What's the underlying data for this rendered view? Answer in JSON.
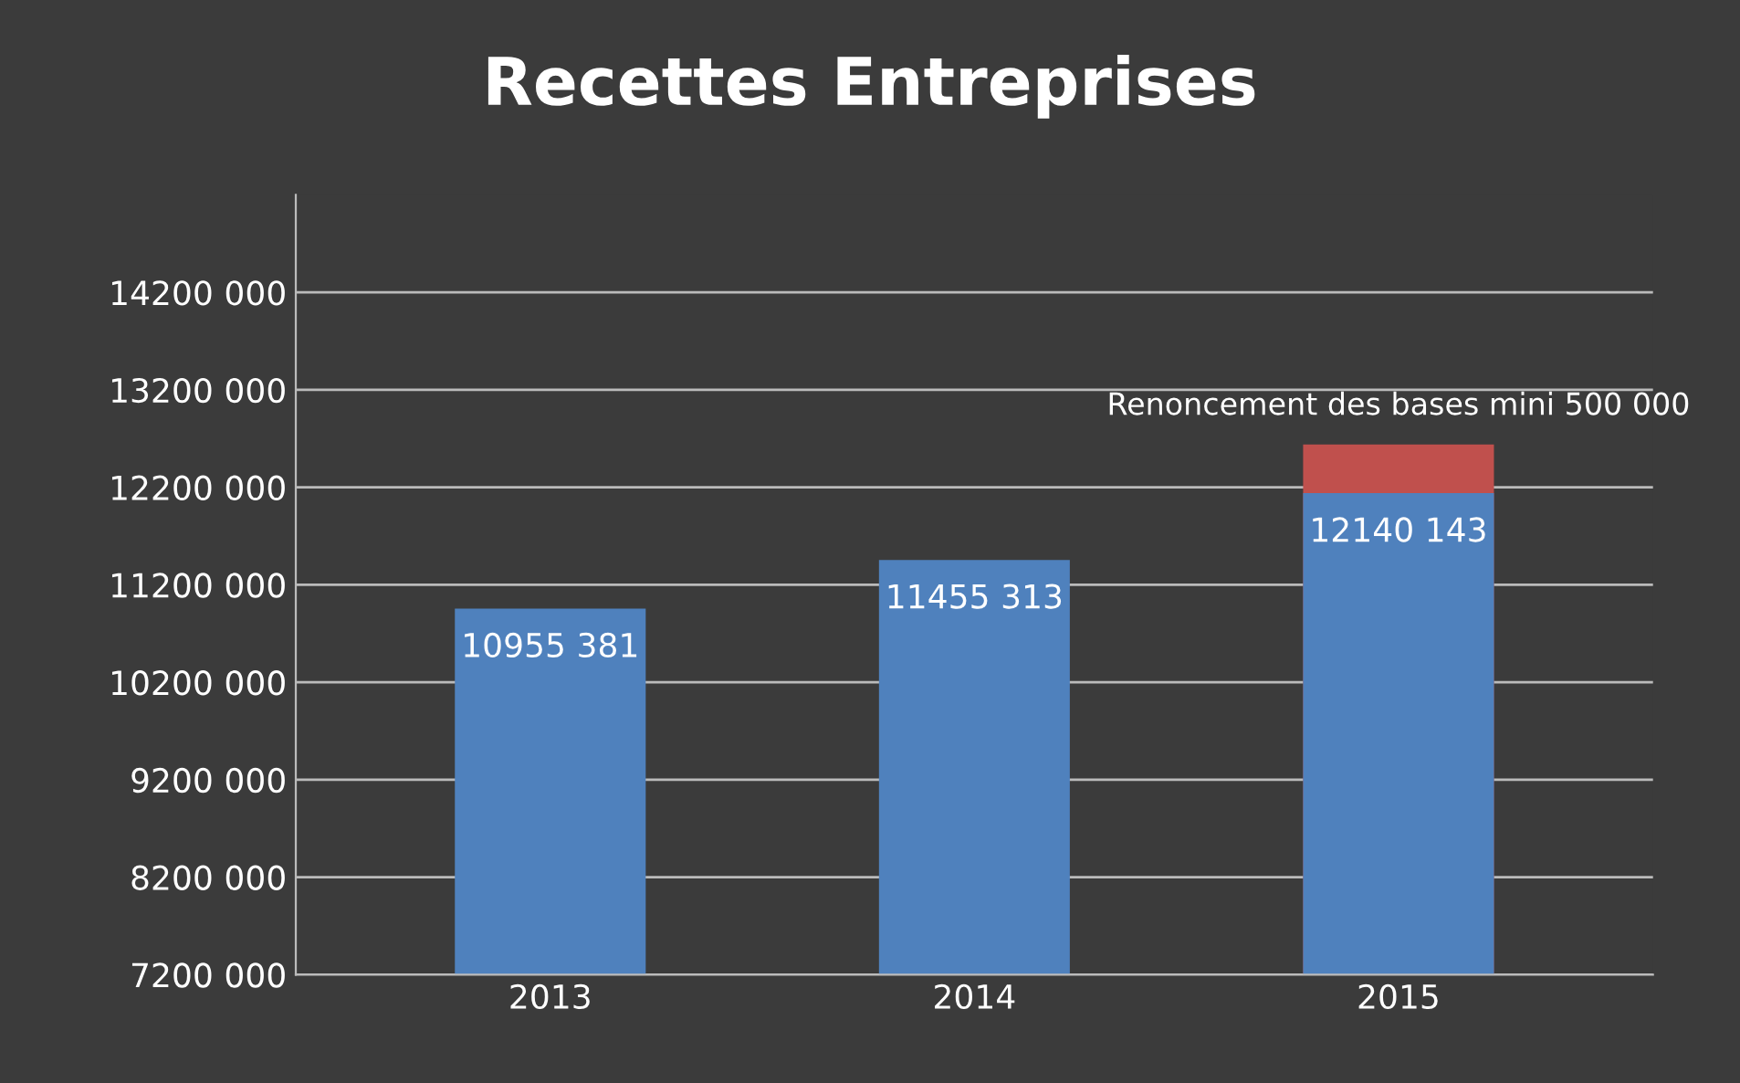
{
  "chart_data": {
    "type": "bar",
    "title": "Recettes Entreprises",
    "grid": "y",
    "categories": [
      "2013",
      "2014",
      "2015"
    ],
    "series": [
      {
        "color": "#c0504d",
        "values": [
          null,
          null,
          12640143
        ],
        "value_labels": [
          null,
          null,
          "Renoncement des bases mini 500 000"
        ]
      },
      {
        "color": "#4f81bd",
        "values": [
          10955381,
          11455313,
          12140143
        ],
        "value_labels": [
          "10955 381",
          "11455 313",
          "12140 143"
        ]
      }
    ],
    "ylim": [
      7200000,
      15200000
    ],
    "yticks": [
      {
        "value": 7200000,
        "label": "7200 000"
      },
      {
        "value": 8200000,
        "label": "8200 000"
      },
      {
        "value": 9200000,
        "label": "9200 000"
      },
      {
        "value": 10200000,
        "label": "10200 000"
      },
      {
        "value": 11200000,
        "label": "11200 000"
      },
      {
        "value": 12200000,
        "label": "12200 000"
      },
      {
        "value": 13200000,
        "label": "13200 000"
      },
      {
        "value": 14200000,
        "label": "14200 000"
      }
    ]
  }
}
